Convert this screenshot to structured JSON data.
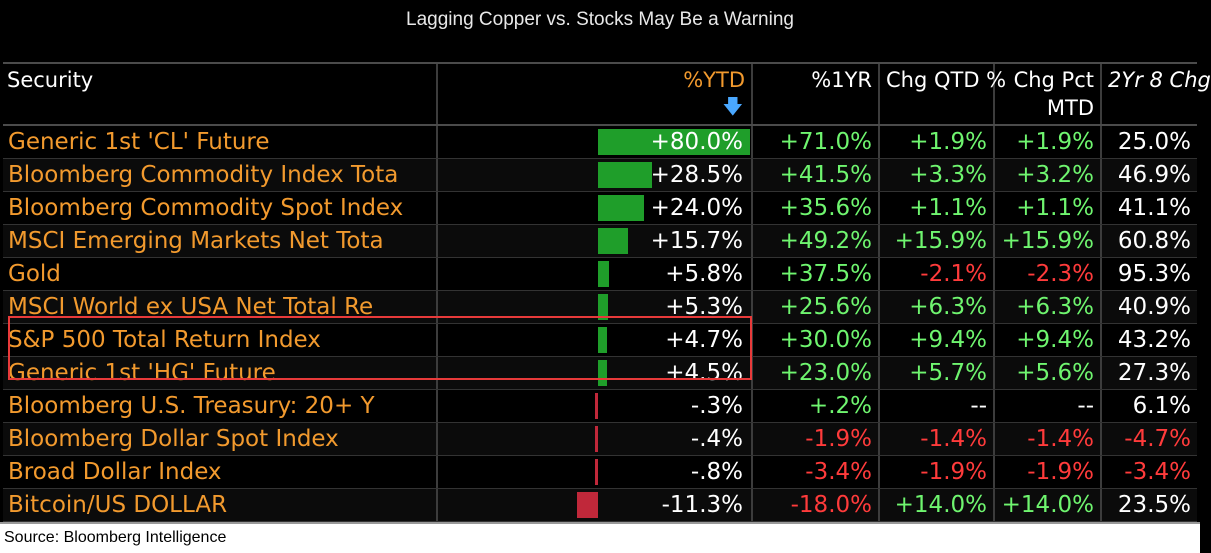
{
  "title": "Lagging Copper vs. Stocks May Be a Warning",
  "headers": {
    "security": "Security",
    "ytd": "%YTD",
    "ytd_sort_icon": "down-arrow-icon",
    "one_yr": "%1YR",
    "chg_qtd": "Chg QTD %",
    "chg_mtd_line1": "Chg Pct",
    "chg_mtd_line2": "MTD",
    "two_yr": "2Yr 8 Chg"
  },
  "colors": {
    "security_text": "#f29a2e",
    "positive": "#6ff56f",
    "negative": "#ff3b3b",
    "bar_positive": "#1f9e2a",
    "bar_negative": "#c0283a",
    "highlight_box": "#e83a3a"
  },
  "ytd_bar_scale_max": 80.0,
  "rows": [
    {
      "security": "Generic 1st 'CL' Future",
      "ytd": "+80.0%",
      "ytd_value": 80.0,
      "one_yr": "+71.0%",
      "chg_qtd": "+1.9%",
      "chg_mtd": "+1.9%",
      "two_yr": "25.0%"
    },
    {
      "security": "Bloomberg Commodity Index Tota",
      "ytd": "+28.5%",
      "ytd_value": 28.5,
      "one_yr": "+41.5%",
      "chg_qtd": "+3.3%",
      "chg_mtd": "+3.2%",
      "two_yr": "46.9%"
    },
    {
      "security": "Bloomberg Commodity Spot Index",
      "ytd": "+24.0%",
      "ytd_value": 24.0,
      "one_yr": "+35.6%",
      "chg_qtd": "+1.1%",
      "chg_mtd": "+1.1%",
      "two_yr": "41.1%"
    },
    {
      "security": "MSCI Emerging Markets Net Tota",
      "ytd": "+15.7%",
      "ytd_value": 15.7,
      "one_yr": "+49.2%",
      "chg_qtd": "+15.9%",
      "chg_mtd": "+15.9%",
      "two_yr": "60.8%"
    },
    {
      "security": "Gold",
      "ytd": "+5.8%",
      "ytd_value": 5.8,
      "one_yr": "+37.5%",
      "chg_qtd": "-2.1%",
      "chg_mtd": "-2.3%",
      "two_yr": "95.3%"
    },
    {
      "security": "MSCI World ex USA Net Total Re",
      "ytd": "+5.3%",
      "ytd_value": 5.3,
      "one_yr": "+25.6%",
      "chg_qtd": "+6.3%",
      "chg_mtd": "+6.3%",
      "two_yr": "40.9%"
    },
    {
      "security": "S&P 500 Total Return Index",
      "ytd": "+4.7%",
      "ytd_value": 4.7,
      "one_yr": "+30.0%",
      "chg_qtd": "+9.4%",
      "chg_mtd": "+9.4%",
      "two_yr": "43.2%"
    },
    {
      "security": "Generic 1st 'HG' Future",
      "ytd": "+4.5%",
      "ytd_value": 4.5,
      "one_yr": "+23.0%",
      "chg_qtd": "+5.7%",
      "chg_mtd": "+5.6%",
      "two_yr": "27.3%"
    },
    {
      "security": "Bloomberg U.S. Treasury: 20+ Y",
      "ytd": "-.3%",
      "ytd_value": -0.3,
      "one_yr": "+.2%",
      "chg_qtd": "--",
      "chg_mtd": "--",
      "two_yr": "6.1%"
    },
    {
      "security": "Bloomberg Dollar Spot Index",
      "ytd": "-.4%",
      "ytd_value": -0.4,
      "one_yr": "-1.9%",
      "chg_qtd": "-1.4%",
      "chg_mtd": "-1.4%",
      "two_yr": "-4.7%"
    },
    {
      "security": "Broad Dollar Index",
      "ytd": "-.8%",
      "ytd_value": -0.8,
      "one_yr": "-3.4%",
      "chg_qtd": "-1.9%",
      "chg_mtd": "-1.9%",
      "two_yr": "-3.4%"
    },
    {
      "security": "Bitcoin/US DOLLAR",
      "ytd": "-11.3%",
      "ytd_value": -11.3,
      "one_yr": "-18.0%",
      "chg_qtd": "+14.0%",
      "chg_mtd": "+14.0%",
      "two_yr": "23.5%"
    }
  ],
  "source": "Source: Bloomberg Intelligence"
}
